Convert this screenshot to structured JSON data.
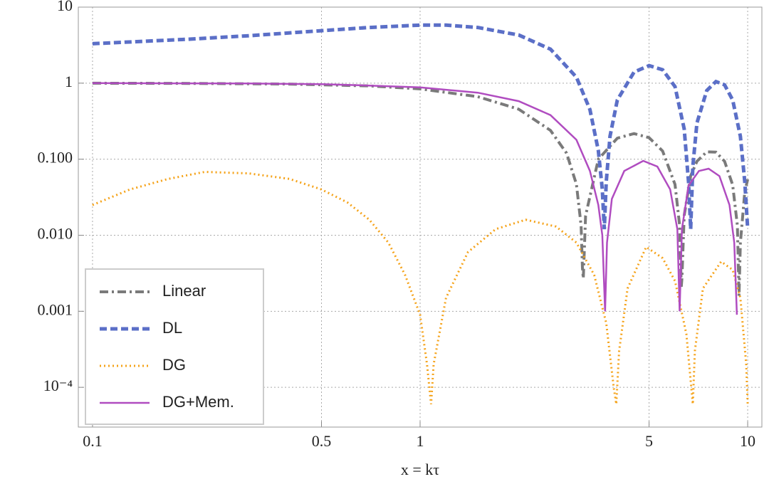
{
  "chart_data": {
    "type": "line",
    "xlabel": "x = kτ",
    "log_x": true,
    "log_y": true,
    "grid": true,
    "legend": "lower left",
    "xlim": [
      0.0905,
      11.05
    ],
    "ylim": [
      3e-05,
      10
    ],
    "xticks": [
      0.1,
      0.5,
      1,
      5,
      10
    ],
    "yticks": [
      {
        "value": 10,
        "label": "10"
      },
      {
        "value": 1,
        "label": "1"
      },
      {
        "value": 0.1,
        "label": "0.100"
      },
      {
        "value": 0.01,
        "label": "0.010"
      },
      {
        "value": 0.001,
        "label": "0.001"
      },
      {
        "value": 0.0001,
        "label": "10⁻⁴"
      }
    ],
    "series": [
      {
        "name": "Linear",
        "color": "#7a7a7a",
        "style": "dashdot",
        "x": [
          0.1,
          0.2,
          0.4,
          0.7,
          1,
          1.5,
          2,
          2.5,
          2.8,
          3.0,
          3.1,
          3.13,
          3.15,
          3.2,
          3.5,
          4,
          4.5,
          5,
          5.5,
          6,
          6.2,
          6.27,
          6.3,
          6.4,
          6.7,
          7,
          7.5,
          8,
          8.5,
          9,
          9.3,
          9.41,
          9.5,
          9.8,
          10
        ],
        "values": [
          0.998,
          0.993,
          0.974,
          0.92,
          0.841,
          0.665,
          0.455,
          0.239,
          0.12,
          0.047,
          0.0135,
          0.0037,
          0.0027,
          0.018,
          0.1,
          0.189,
          0.217,
          0.192,
          0.128,
          0.0466,
          0.0134,
          0.0021,
          0.0027,
          0.0182,
          0.0605,
          0.0939,
          0.125,
          0.124,
          0.0939,
          0.0458,
          0.0134,
          0.0016,
          0.0079,
          0.0374,
          0.0544
        ]
      },
      {
        "name": "DL",
        "color": "#5b6fc7",
        "style": "dashed",
        "x": [
          0.1,
          0.2,
          0.3,
          0.5,
          0.7,
          1,
          1.2,
          1.5,
          2,
          2.5,
          3,
          3.3,
          3.5,
          3.6,
          3.65,
          3.7,
          3.8,
          4,
          4.5,
          5,
          5.5,
          6,
          6.4,
          6.6,
          6.7,
          6.8,
          7,
          7.5,
          8,
          8.5,
          9,
          9.5,
          9.8,
          10
        ],
        "values": [
          3.3,
          3.8,
          4.2,
          4.9,
          5.4,
          5.8,
          5.8,
          5.4,
          4.3,
          2.8,
          1.2,
          0.45,
          0.13,
          0.04,
          0.012,
          0.05,
          0.2,
          0.6,
          1.4,
          1.7,
          1.5,
          0.9,
          0.25,
          0.05,
          0.012,
          0.08,
          0.3,
          0.8,
          1.05,
          0.95,
          0.6,
          0.2,
          0.05,
          0.012
        ]
      },
      {
        "name": "DG",
        "color": "#f5a31a",
        "style": "dotted",
        "x": [
          0.1,
          0.13,
          0.17,
          0.22,
          0.3,
          0.4,
          0.5,
          0.6,
          0.7,
          0.8,
          0.9,
          1.0,
          1.05,
          1.08,
          1.1,
          1.2,
          1.4,
          1.7,
          2.1,
          2.6,
          3,
          3.4,
          3.7,
          3.9,
          3.97,
          4.05,
          4.3,
          4.9,
          5.5,
          6,
          6.5,
          6.8,
          6.9,
          7.3,
          8.3,
          9,
          9.5,
          9.9,
          10
        ],
        "values": [
          0.025,
          0.04,
          0.055,
          0.068,
          0.065,
          0.055,
          0.04,
          0.027,
          0.016,
          0.008,
          0.003,
          0.0009,
          0.0002,
          6e-05,
          0.0002,
          0.0015,
          0.006,
          0.012,
          0.016,
          0.013,
          0.008,
          0.003,
          0.0007,
          0.0001,
          6e-05,
          0.0003,
          0.002,
          0.007,
          0.005,
          0.0025,
          0.0005,
          6e-05,
          0.0003,
          0.002,
          0.0045,
          0.0035,
          0.0015,
          0.0002,
          6e-05
        ]
      },
      {
        "name": "DG+Mem.",
        "color": "#b04cc0",
        "style": "solid",
        "x": [
          0.1,
          0.3,
          0.5,
          0.7,
          1,
          1.5,
          2,
          2.5,
          3,
          3.3,
          3.5,
          3.6,
          3.67,
          3.72,
          3.85,
          4.2,
          4.8,
          5.3,
          5.8,
          6.1,
          6.2,
          6.3,
          6.6,
          7.1,
          7.6,
          8.2,
          8.8,
          9.1,
          9.27
        ],
        "values": [
          1,
          0.99,
          0.97,
          0.93,
          0.88,
          0.75,
          0.58,
          0.38,
          0.18,
          0.07,
          0.025,
          0.01,
          0.001,
          0.008,
          0.03,
          0.07,
          0.095,
          0.08,
          0.04,
          0.012,
          0.001,
          0.012,
          0.045,
          0.07,
          0.075,
          0.06,
          0.025,
          0.008,
          0.0009
        ]
      }
    ]
  }
}
